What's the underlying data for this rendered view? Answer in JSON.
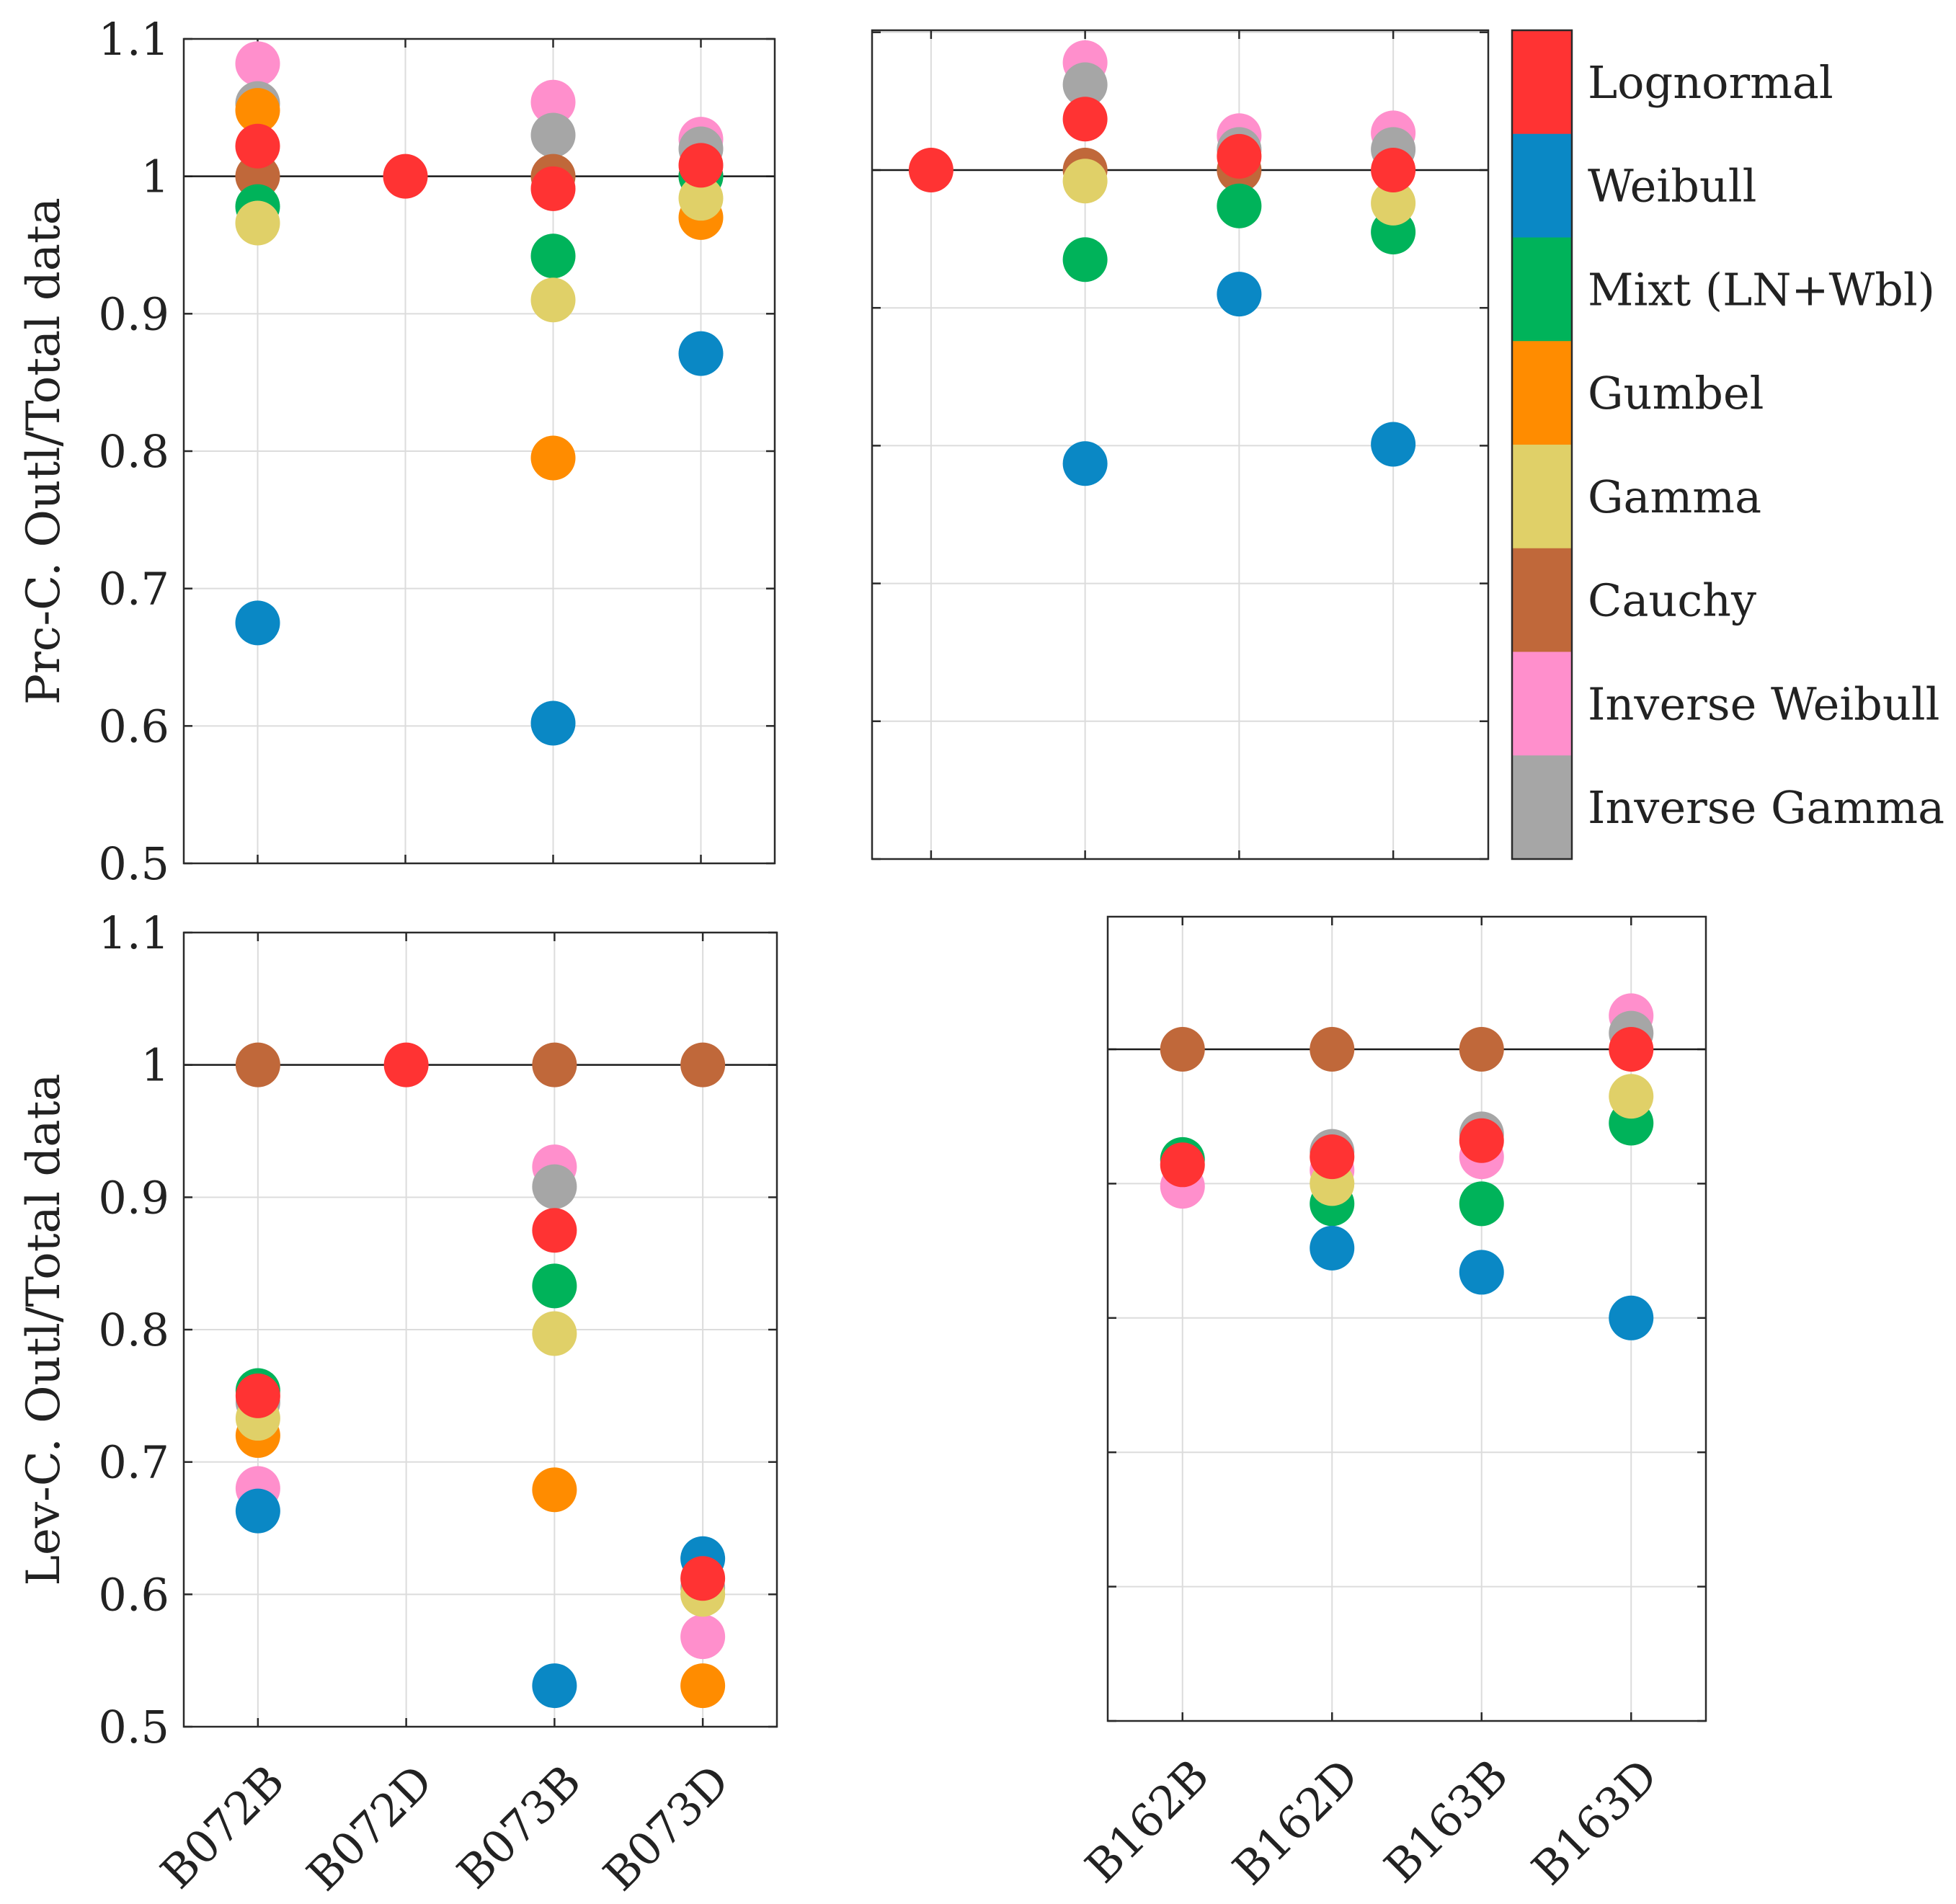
{
  "chart_data": {
    "type": "scatter",
    "legend": {
      "placement": "right of top-right panel",
      "entries": [
        {
          "name": "Lognormal",
          "color": "#ff3333"
        },
        {
          "name": "Weibull",
          "color": "#0a88c5"
        },
        {
          "name": "Mixt (LN+Wbl)",
          "color": "#00b35a"
        },
        {
          "name": "Gumbel",
          "color": "#ff8c00"
        },
        {
          "name": "Gamma",
          "color": "#e0d068"
        },
        {
          "name": "Cauchy",
          "color": "#c0683a"
        },
        {
          "name": "Inverse Weibull",
          "color": "#ff8fcc"
        },
        {
          "name": "Inverse Gamma",
          "color": "#a6a6a6"
        }
      ]
    },
    "draw_order": [
      "Inverse Weibull",
      "Inverse Gamma",
      "Gumbel",
      "Cauchy",
      "Mixt (LN+Wbl)",
      "Gamma",
      "Weibull",
      "Lognormal"
    ],
    "panels": [
      {
        "id": "top-left",
        "ylabel": "Prc-C. Outl/Total data",
        "ylim": [
          0.5,
          1.1
        ],
        "yticks": [
          "0.5",
          "0.6",
          "0.7",
          "0.8",
          "0.9",
          "1",
          "1.1"
        ],
        "categories": [
          "B072B",
          "B072D",
          "B073B",
          "B073D"
        ],
        "show_xtick_labels": false,
        "show_ytick_labels": true,
        "reference_line": 1,
        "grid": true,
        "series": [
          {
            "name": "Lognormal",
            "values": [
              1.022,
              1.0,
              0.991,
              1.008
            ]
          },
          {
            "name": "Weibull",
            "values": [
              0.675,
              null,
              0.602,
              0.871
            ]
          },
          {
            "name": "Mixt (LN+Wbl)",
            "values": [
              0.978,
              null,
              0.942,
              1.0
            ]
          },
          {
            "name": "Gumbel",
            "values": [
              1.048,
              null,
              0.795,
              0.97
            ]
          },
          {
            "name": "Gamma",
            "values": [
              0.966,
              null,
              0.91,
              0.984
            ]
          },
          {
            "name": "Cauchy",
            "values": [
              1.0,
              null,
              1.0,
              1.0
            ]
          },
          {
            "name": "Inverse Weibull",
            "values": [
              1.082,
              null,
              1.054,
              1.027
            ]
          },
          {
            "name": "Inverse Gamma",
            "values": [
              1.053,
              null,
              1.03,
              1.02
            ]
          }
        ]
      },
      {
        "id": "top-right",
        "ylabel": "",
        "ylim": [
          0.5,
          1.1
        ],
        "yticks": [
          "0.5",
          "0.6",
          "0.7",
          "0.8",
          "0.9",
          "1",
          "1.1"
        ],
        "categories": [
          "B162B",
          "B162D",
          "B163B",
          "B163D"
        ],
        "show_xtick_labels": false,
        "show_ytick_labels": false,
        "reference_line": 1,
        "grid": true,
        "series": [
          {
            "name": "Lognormal",
            "values": [
              1.0,
              1.037,
              1.01,
              1.0
            ]
          },
          {
            "name": "Weibull",
            "values": [
              null,
              0.787,
              0.91,
              0.801
            ]
          },
          {
            "name": "Mixt (LN+Wbl)",
            "values": [
              null,
              0.935,
              0.974,
              0.955
            ]
          },
          {
            "name": "Gumbel",
            "values": [
              null,
              null,
              null,
              null
            ]
          },
          {
            "name": "Gamma",
            "values": [
              null,
              0.992,
              null,
              0.976
            ]
          },
          {
            "name": "Cauchy",
            "values": [
              null,
              1.0,
              1.0,
              null
            ]
          },
          {
            "name": "Inverse Weibull",
            "values": [
              null,
              1.078,
              1.025,
              1.027
            ]
          },
          {
            "name": "Inverse Gamma",
            "values": [
              null,
              1.062,
              1.015,
              1.015
            ]
          }
        ]
      },
      {
        "id": "bottom-left",
        "ylabel": "Lev-C. Outl/Total data",
        "ylim": [
          0.5,
          1.1
        ],
        "yticks": [
          "0.5",
          "0.6",
          "0.7",
          "0.8",
          "0.9",
          "1",
          "1.1"
        ],
        "categories": [
          "B072B",
          "B072D",
          "B073B",
          "B073D"
        ],
        "show_xtick_labels": true,
        "show_ytick_labels": true,
        "reference_line": 1,
        "grid": true,
        "series": [
          {
            "name": "Lognormal",
            "values": [
              0.75,
              1.0,
              0.875,
              0.612
            ]
          },
          {
            "name": "Weibull",
            "values": [
              0.663,
              null,
              0.531,
              0.627
            ]
          },
          {
            "name": "Mixt (LN+Wbl)",
            "values": [
              0.754,
              null,
              0.833,
              null
            ]
          },
          {
            "name": "Gumbel",
            "values": [
              0.72,
              null,
              0.679,
              0.531
            ]
          },
          {
            "name": "Gamma",
            "values": [
              0.733,
              null,
              0.797,
              0.6
            ]
          },
          {
            "name": "Cauchy",
            "values": [
              1.0,
              null,
              1.0,
              1.0
            ]
          },
          {
            "name": "Inverse Weibull",
            "values": [
              0.68,
              null,
              0.923,
              0.568
            ]
          },
          {
            "name": "Inverse Gamma",
            "values": [
              0.745,
              null,
              0.908,
              0.605
            ]
          }
        ]
      },
      {
        "id": "bottom-right",
        "ylabel": "",
        "ylim": [
          0.5,
          1.1
        ],
        "yticks": [
          "0.5",
          "0.6",
          "0.7",
          "0.8",
          "0.9",
          "1",
          "1.1"
        ],
        "categories": [
          "B162B",
          "B162D",
          "B163B",
          "B163D"
        ],
        "show_xtick_labels": true,
        "show_ytick_labels": false,
        "reference_line": 1,
        "grid": true,
        "series": [
          {
            "name": "Lognormal",
            "values": [
              0.914,
              0.92,
              0.932,
              1.0
            ]
          },
          {
            "name": "Weibull",
            "values": [
              null,
              0.852,
              0.834,
              0.8
            ]
          },
          {
            "name": "Mixt (LN+Wbl)",
            "values": [
              0.918,
              0.885,
              0.885,
              0.945
            ]
          },
          {
            "name": "Gumbel",
            "values": [
              null,
              null,
              null,
              null
            ]
          },
          {
            "name": "Gamma",
            "values": [
              null,
              0.9,
              null,
              0.965
            ]
          },
          {
            "name": "Cauchy",
            "values": [
              1.0,
              1.0,
              1.0,
              null
            ]
          },
          {
            "name": "Inverse Weibull",
            "values": [
              0.898,
              0.91,
              0.92,
              1.025
            ]
          },
          {
            "name": "Inverse Gamma",
            "values": [
              null,
              0.924,
              0.937,
              1.012
            ]
          }
        ]
      }
    ]
  }
}
